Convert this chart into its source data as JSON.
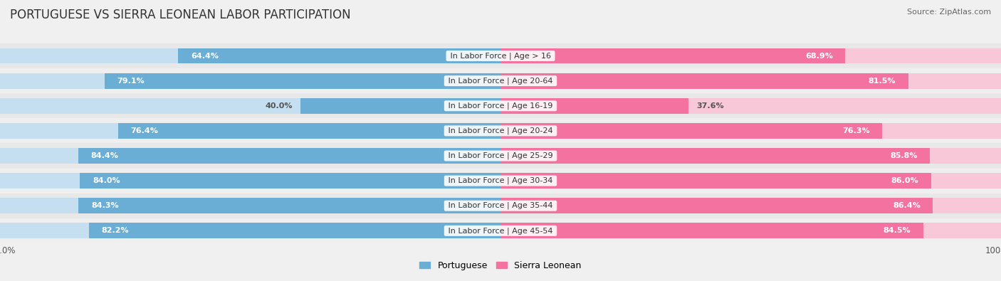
{
  "title": "PORTUGUESE VS SIERRA LEONEAN LABOR PARTICIPATION",
  "source": "Source: ZipAtlas.com",
  "categories": [
    "In Labor Force | Age > 16",
    "In Labor Force | Age 20-64",
    "In Labor Force | Age 16-19",
    "In Labor Force | Age 20-24",
    "In Labor Force | Age 25-29",
    "In Labor Force | Age 30-34",
    "In Labor Force | Age 35-44",
    "In Labor Force | Age 45-54"
  ],
  "portuguese_values": [
    64.4,
    79.1,
    40.0,
    76.4,
    84.4,
    84.0,
    84.3,
    82.2
  ],
  "sierra_leonean_values": [
    68.9,
    81.5,
    37.6,
    76.3,
    85.8,
    86.0,
    86.4,
    84.5
  ],
  "portuguese_color": "#6aaed6",
  "portuguese_color_light": "#c5dff0",
  "sierra_leonean_color": "#f472a0",
  "sierra_leonean_color_light": "#f9c8d8",
  "background_color": "#f0f0f0",
  "row_colors_even": "#e8e8e8",
  "row_colors_odd": "#efefef",
  "max_value": 100.0,
  "legend_labels": [
    "Portuguese",
    "Sierra Leonean"
  ],
  "title_fontsize": 12,
  "source_fontsize": 8,
  "label_fontsize": 8,
  "value_fontsize": 8,
  "bar_height": 0.62,
  "inside_threshold": 50
}
